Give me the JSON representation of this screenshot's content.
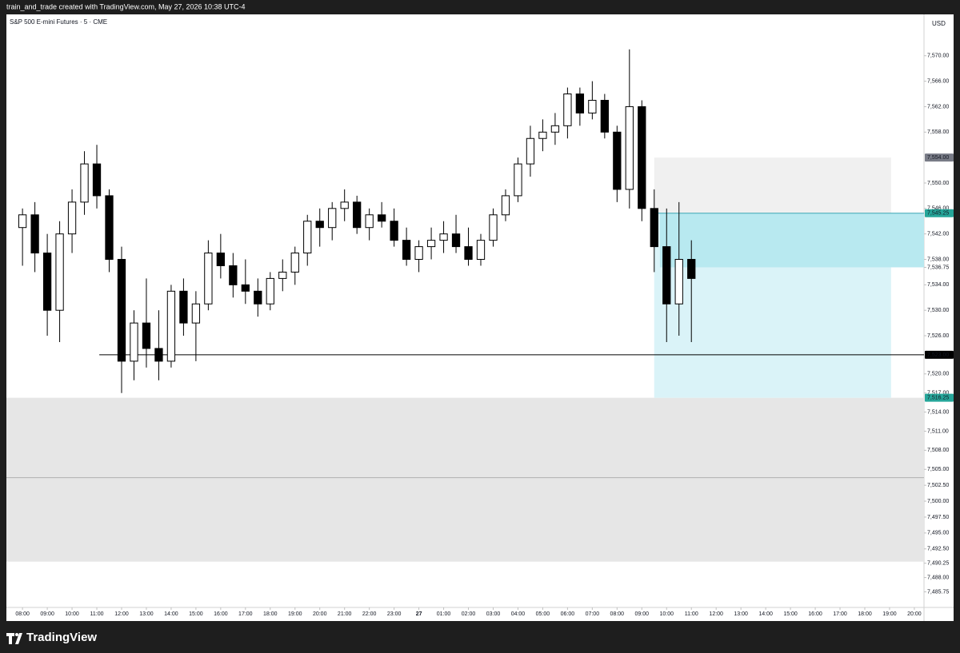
{
  "header": {
    "attribution": "train_and_trade created with TradingView.com, May 27, 2026 10:38 UTC-4"
  },
  "branding": {
    "logo": "TradingView"
  },
  "chart_data": {
    "type": "candlestick",
    "title": "S&P 500 E-mini Futures · 5 · CME",
    "currency": "USD",
    "up_color": "#ffffff",
    "down_color": "#000000",
    "x": [
      8,
      8.5,
      9,
      9.5,
      10,
      10.5,
      11,
      11.5,
      12,
      12.5,
      13,
      13.5,
      14,
      14.5,
      15,
      15.5,
      16,
      16.5,
      17,
      17.5,
      18,
      18.5,
      19,
      19.5,
      20,
      20.5,
      21,
      21.5,
      22,
      22.5,
      23,
      23.5,
      24,
      24.5,
      25,
      25.5,
      26,
      26.5,
      27,
      27.5,
      28,
      28.5,
      29,
      29.5,
      30,
      30.5,
      31,
      31.5,
      32,
      32.5,
      33,
      33.5,
      34,
      34.5,
      35
    ],
    "open": [
      7543,
      7545,
      7539,
      7530,
      7542,
      7547,
      7553,
      7548,
      7538,
      7522,
      7528,
      7524,
      7522,
      7533,
      7528,
      7531,
      7539,
      7537,
      7534,
      7533,
      7531,
      7535,
      7536,
      7539,
      7544,
      7543,
      7546,
      7547,
      7543,
      7545,
      7544,
      7541,
      7538,
      7540,
      7541,
      7542,
      7540,
      7538,
      7541,
      7545,
      7548,
      7553,
      7557,
      7558,
      7559,
      7564,
      7561,
      7563,
      7558,
      7549,
      7562,
      7546,
      7540,
      7531,
      7538
    ],
    "high": [
      7546,
      7547,
      7542,
      7544,
      7549,
      7555,
      7556,
      7549,
      7540,
      7530,
      7535,
      7530,
      7534,
      7535,
      7533,
      7541,
      7542,
      7539,
      7538,
      7535,
      7536,
      7538,
      7540,
      7545,
      7546,
      7547,
      7549,
      7548,
      7546,
      7547,
      7546,
      7543,
      7541,
      7543,
      7544,
      7545,
      7543,
      7542,
      7546,
      7549,
      7554,
      7559,
      7560,
      7561,
      7565,
      7565,
      7566,
      7564,
      7559,
      7571,
      7563,
      7549,
      7546,
      7547,
      7541
    ],
    "low": [
      7537,
      7536,
      7526,
      7525,
      7539,
      7545,
      7546,
      7536,
      7517,
      7519,
      7521,
      7519,
      7521,
      7526,
      7522,
      7530,
      7535,
      7532,
      7531,
      7529,
      7530,
      7533,
      7534,
      7537,
      7540,
      7541,
      7544,
      7542,
      7541,
      7543,
      7540,
      7537,
      7536,
      7538,
      7539,
      7539,
      7537,
      7537,
      7540,
      7544,
      7547,
      7551,
      7555,
      7556,
      7557,
      7559,
      7560,
      7557,
      7547,
      7546,
      7544,
      7536,
      7525,
      7526,
      7525
    ],
    "close": [
      7545,
      7539,
      7530,
      7542,
      7547,
      7553,
      7548,
      7538,
      7522,
      7528,
      7524,
      7522,
      7533,
      7528,
      7531,
      7539,
      7537,
      7534,
      7533,
      7531,
      7535,
      7536,
      7539,
      7544,
      7543,
      7546,
      7547,
      7543,
      7545,
      7544,
      7541,
      7538,
      7540,
      7541,
      7542,
      7540,
      7538,
      7541,
      7545,
      7548,
      7553,
      7557,
      7558,
      7559,
      7564,
      7561,
      7563,
      7558,
      7549,
      7562,
      7546,
      7540,
      7531,
      7538,
      7535
    ],
    "xlim": [
      7.35,
      44.39
    ],
    "ylim": [
      7483.3,
      7576.5
    ],
    "xticks": [
      {
        "value": 8,
        "label": "08:00"
      },
      {
        "value": 9,
        "label": "09:00"
      },
      {
        "value": 10,
        "label": "10:00"
      },
      {
        "value": 11,
        "label": "11:00"
      },
      {
        "value": 12,
        "label": "12:00"
      },
      {
        "value": 13,
        "label": "13:00"
      },
      {
        "value": 14,
        "label": "14:00"
      },
      {
        "value": 15,
        "label": "15:00"
      },
      {
        "value": 16,
        "label": "16:00"
      },
      {
        "value": 17,
        "label": "17:00"
      },
      {
        "value": 18,
        "label": "18:00"
      },
      {
        "value": 19,
        "label": "19:00"
      },
      {
        "value": 20,
        "label": "20:00"
      },
      {
        "value": 21,
        "label": "21:00"
      },
      {
        "value": 22,
        "label": "22:00"
      },
      {
        "value": 23,
        "label": "23:00"
      },
      {
        "value": 24,
        "label": "27"
      },
      {
        "value": 25,
        "label": "01:00"
      },
      {
        "value": 26,
        "label": "02:00"
      },
      {
        "value": 27,
        "label": "03:00"
      },
      {
        "value": 28,
        "label": "04:00"
      },
      {
        "value": 29,
        "label": "05:00"
      },
      {
        "value": 30,
        "label": "06:00"
      },
      {
        "value": 31,
        "label": "07:00"
      },
      {
        "value": 32,
        "label": "08:00"
      },
      {
        "value": 33,
        "label": "09:00"
      },
      {
        "value": 34,
        "label": "10:00"
      },
      {
        "value": 35,
        "label": "11:00"
      },
      {
        "value": 36,
        "label": "12:00"
      },
      {
        "value": 37,
        "label": "13:00"
      },
      {
        "value": 38,
        "label": "14:00"
      },
      {
        "value": 39,
        "label": "15:00"
      },
      {
        "value": 40,
        "label": "16:00"
      },
      {
        "value": 41,
        "label": "17:00"
      },
      {
        "value": 42,
        "label": "18:00"
      },
      {
        "value": 43,
        "label": "19:00"
      },
      {
        "value": 44,
        "label": "20:00"
      }
    ],
    "yticks": [
      {
        "value": 7570,
        "label": "7,570.00"
      },
      {
        "value": 7566,
        "label": "7,566.00"
      },
      {
        "value": 7562,
        "label": "7,562.00"
      },
      {
        "value": 7558,
        "label": "7,558.00"
      },
      {
        "value": 7550,
        "label": "7,550.00"
      },
      {
        "value": 7546,
        "label": "7,546.00"
      },
      {
        "value": 7542,
        "label": "7,542.00"
      },
      {
        "value": 7538,
        "label": "7,538.00"
      },
      {
        "value": 7536.75,
        "label": "7,536.75"
      },
      {
        "value": 7534,
        "label": "7,534.00"
      },
      {
        "value": 7530,
        "label": "7,530.00"
      },
      {
        "value": 7526,
        "label": "7,526.00"
      },
      {
        "value": 7520,
        "label": "7,520.00"
      },
      {
        "value": 7517,
        "label": "7,517.00"
      },
      {
        "value": 7514,
        "label": "7,514.00"
      },
      {
        "value": 7511,
        "label": "7,511.00"
      },
      {
        "value": 7508,
        "label": "7,508.00"
      },
      {
        "value": 7505,
        "label": "7,505.00"
      },
      {
        "value": 7502.5,
        "label": "7,502.50"
      },
      {
        "value": 7500,
        "label": "7,500.00"
      },
      {
        "value": 7497.5,
        "label": "7,497.50"
      },
      {
        "value": 7495,
        "label": "7,495.00"
      },
      {
        "value": 7492.5,
        "label": "7,492.50"
      },
      {
        "value": 7490.25,
        "label": "7,490.25"
      },
      {
        "value": 7488,
        "label": "7,488.00"
      },
      {
        "value": 7485.75,
        "label": "7,485.75"
      }
    ],
    "zones": [
      {
        "x0": 7.35,
        "x1": 44.39,
        "low": 7490.5,
        "high": 7516.25,
        "color": "#e6e6e6"
      },
      {
        "x0": 33.5,
        "x1": 43.06,
        "low": 7545.25,
        "high": 7554,
        "color": "#f0f0f0"
      },
      {
        "x0": 33.5,
        "x1": 43.06,
        "low": 7516.25,
        "high": 7545.25,
        "color": "#daf3f8"
      },
      {
        "x0": 33.73,
        "x1": 44.39,
        "low": 7536.75,
        "high": 7545.25,
        "color": "#b8e9f0"
      }
    ],
    "lines": [
      {
        "x0": 11.1,
        "price": 7523,
        "color": "#000000"
      },
      {
        "x0": 7.35,
        "price": 7503.7,
        "color": "#b0b0b0"
      },
      {
        "x0": 33.5,
        "price": 7545.25,
        "color": "#3aa6b4"
      }
    ],
    "price_labels": [
      {
        "value": 7554,
        "label": "7,554.00",
        "color": "#787b86"
      },
      {
        "value": 7545.25,
        "label": "7,545.25",
        "color": "#26a69a"
      },
      {
        "value": 7523,
        "label": "7,523.00",
        "color": "#000000"
      },
      {
        "value": 7516.25,
        "label": "7,516.25",
        "color": "#26a69a"
      }
    ]
  }
}
